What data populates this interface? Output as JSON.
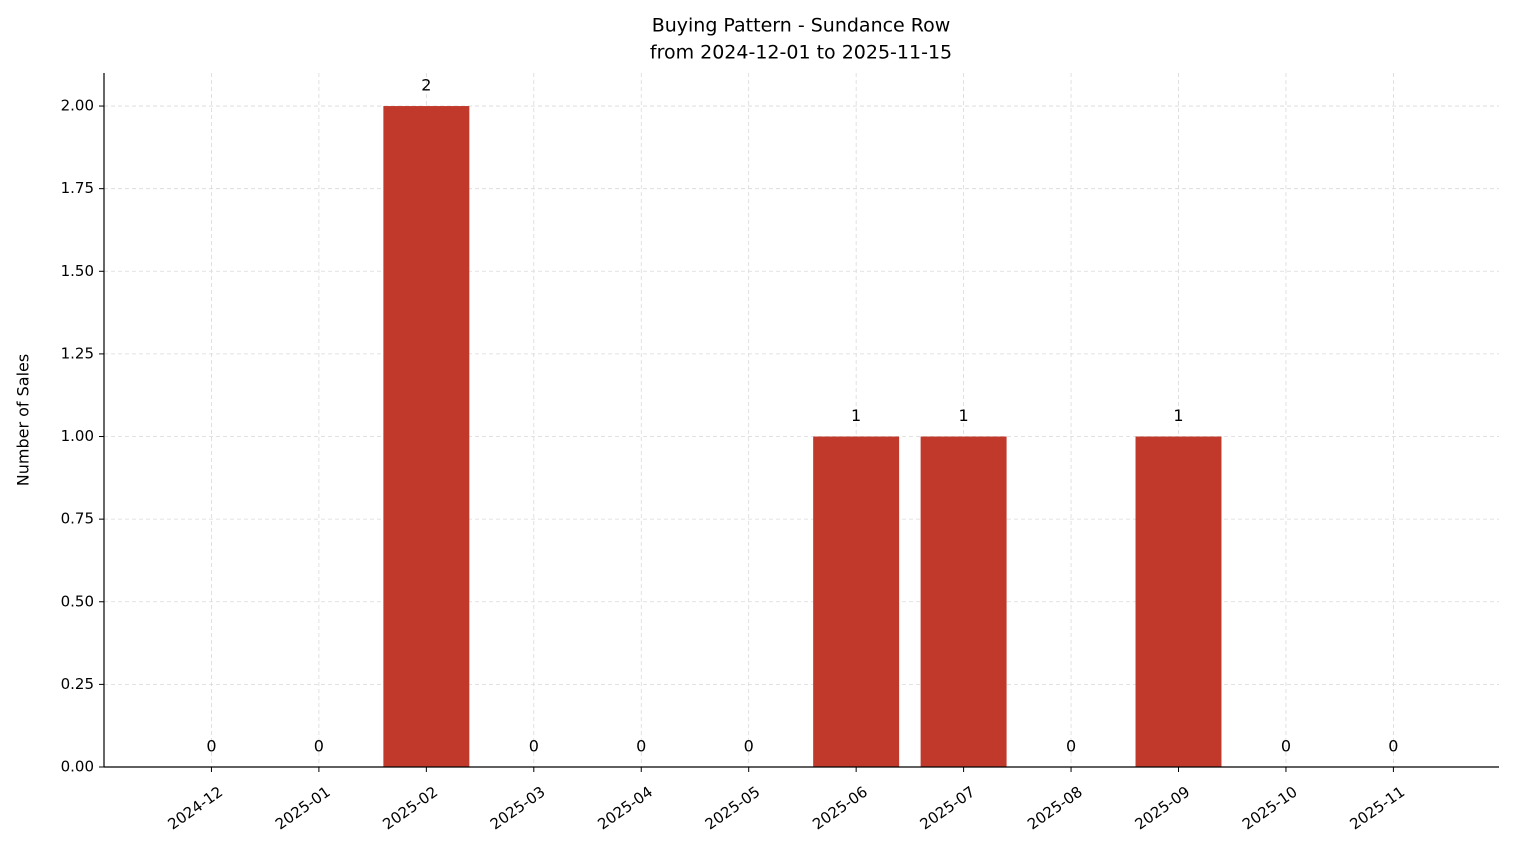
{
  "chart_data": {
    "type": "bar",
    "title": "Buying Pattern - Sundance Row",
    "subtitle": "from 2024-12-01 to 2025-11-15",
    "y_label": "Number of Sales",
    "categories": [
      "2024-12",
      "2025-01",
      "2025-02",
      "2025-03",
      "2025-04",
      "2025-05",
      "2025-06",
      "2025-07",
      "2025-08",
      "2025-09",
      "2025-10",
      "2025-11"
    ],
    "values": [
      0,
      0,
      2,
      0,
      0,
      0,
      1,
      1,
      0,
      1,
      0,
      0
    ],
    "color": "#c0392b",
    "ylim": [
      0,
      2.1
    ],
    "yticks": [
      {
        "value": 0,
        "label": "0.00"
      },
      {
        "value": 0.25,
        "label": "0.25"
      },
      {
        "value": 0.5,
        "label": "0.50"
      },
      {
        "value": 0.75,
        "label": "0.75"
      },
      {
        "value": 1,
        "label": "1.00"
      },
      {
        "value": 1.25,
        "label": "1.25"
      },
      {
        "value": 1.5,
        "label": "1.50"
      },
      {
        "value": 1.75,
        "label": "1.75"
      },
      {
        "value": 2,
        "label": "2.00"
      }
    ],
    "grid": true
  }
}
